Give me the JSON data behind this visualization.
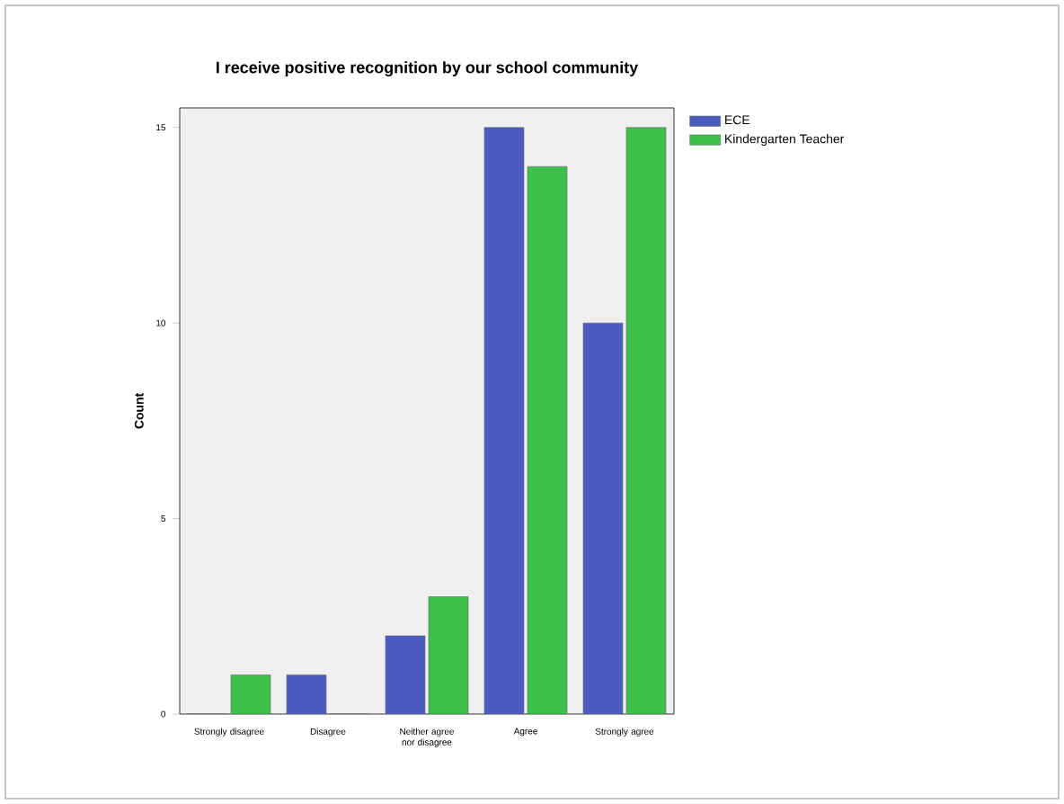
{
  "chart_data": {
    "type": "bar",
    "title": "I receive positive recognition by our school community",
    "ylabel": "Count",
    "categories": [
      "Strongly disagree",
      "Disagree",
      "Neither agree nor disagree",
      "Agree",
      "Strongly agree"
    ],
    "series": [
      {
        "name": "ECE",
        "color": "#4b5cbf",
        "values": [
          0,
          1,
          2,
          15,
          10
        ]
      },
      {
        "name": "Kindergarten Teacher",
        "color": "#3dbf4c",
        "values": [
          1,
          0,
          3,
          14,
          15
        ]
      }
    ],
    "ylim": [
      0,
      15.5
    ],
    "yticks": [
      0,
      5,
      10,
      15
    ],
    "grid": false,
    "legend": "top right"
  }
}
